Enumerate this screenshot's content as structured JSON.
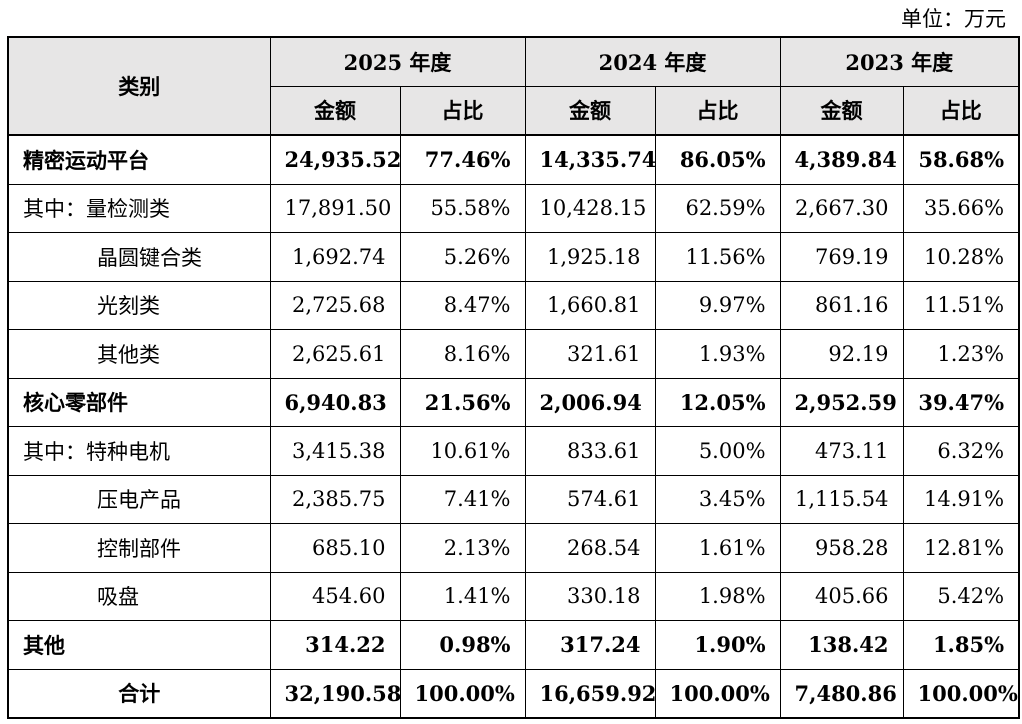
{
  "unit_label": "单位：万元",
  "header": {
    "category": "类别",
    "years": [
      "2025 年度",
      "2024 年度",
      "2023 年度"
    ],
    "amount": "金额",
    "ratio": "占比"
  },
  "rows": [
    {
      "label": "精密运动平台",
      "style": "bold",
      "values": [
        "24,935.52",
        "77.46%",
        "14,335.74",
        "86.05%",
        "4,389.84",
        "58.68%"
      ]
    },
    {
      "label": "其中：量检测类",
      "style": "normal",
      "values": [
        "17,891.50",
        "55.58%",
        "10,428.15",
        "62.59%",
        "2,667.30",
        "35.66%"
      ]
    },
    {
      "label": "晶圆键合类",
      "style": "sub",
      "values": [
        "1,692.74",
        "5.26%",
        "1,925.18",
        "11.56%",
        "769.19",
        "10.28%"
      ]
    },
    {
      "label": "光刻类",
      "style": "sub",
      "values": [
        "2,725.68",
        "8.47%",
        "1,660.81",
        "9.97%",
        "861.16",
        "11.51%"
      ]
    },
    {
      "label": "其他类",
      "style": "sub",
      "values": [
        "2,625.61",
        "8.16%",
        "321.61",
        "1.93%",
        "92.19",
        "1.23%"
      ]
    },
    {
      "label": "核心零部件",
      "style": "bold",
      "values": [
        "6,940.83",
        "21.56%",
        "2,006.94",
        "12.05%",
        "2,952.59",
        "39.47%"
      ]
    },
    {
      "label": "其中：特种电机",
      "style": "normal",
      "values": [
        "3,415.38",
        "10.61%",
        "833.61",
        "5.00%",
        "473.11",
        "6.32%"
      ]
    },
    {
      "label": "压电产品",
      "style": "sub",
      "values": [
        "2,385.75",
        "7.41%",
        "574.61",
        "3.45%",
        "1,115.54",
        "14.91%"
      ]
    },
    {
      "label": "控制部件",
      "style": "sub",
      "values": [
        "685.10",
        "2.13%",
        "268.54",
        "1.61%",
        "958.28",
        "12.81%"
      ]
    },
    {
      "label": "吸盘",
      "style": "sub",
      "values": [
        "454.60",
        "1.41%",
        "330.18",
        "1.98%",
        "405.66",
        "5.42%"
      ]
    },
    {
      "label": "其他",
      "style": "bold",
      "values": [
        "314.22",
        "0.98%",
        "317.24",
        "1.90%",
        "138.42",
        "1.85%"
      ]
    },
    {
      "label": "合计",
      "style": "total",
      "values": [
        "32,190.58",
        "100.00%",
        "16,659.92",
        "100.00%",
        "7,480.86",
        "100.00%"
      ]
    }
  ]
}
